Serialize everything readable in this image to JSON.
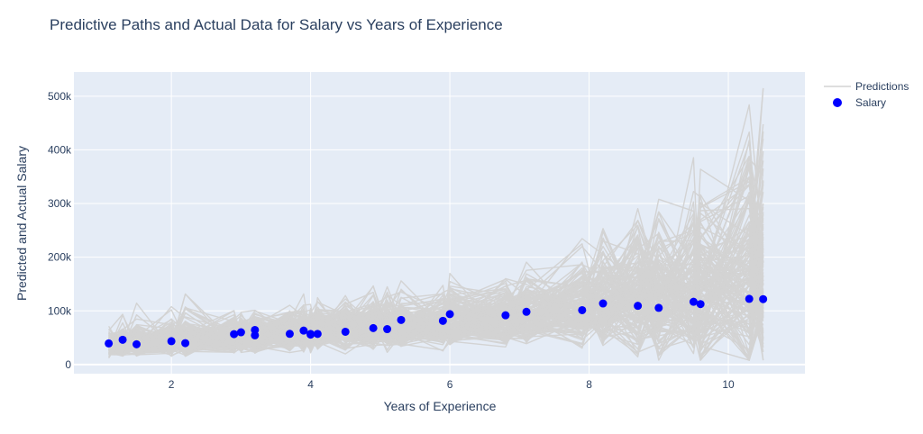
{
  "chart_data": {
    "type": "scatter",
    "title": "Predictive Paths and Actual Data for Salary vs Years of Experience",
    "xlabel": "Years of Experience",
    "ylabel": "Predicted and Actual Salary",
    "xlim": [
      0.6,
      11.1
    ],
    "ylim": [
      -17000,
      545000
    ],
    "x_ticks": [
      2,
      4,
      6,
      8,
      10
    ],
    "x_tick_labels": [
      "2",
      "4",
      "6",
      "8",
      "10"
    ],
    "y_ticks": [
      0,
      100000,
      200000,
      300000,
      400000,
      500000
    ],
    "y_tick_labels": [
      "0",
      "100k",
      "200k",
      "300k",
      "400k",
      "500k"
    ],
    "grid": true,
    "legend_position": "top-right",
    "colors": {
      "plot_bg": "#e5ecf6",
      "grid": "#ffffff",
      "predictions": "#d3d3d3",
      "salary": "#0000ff",
      "text": "#2a3f5f"
    },
    "series": [
      {
        "name": "Predictions",
        "kind": "lines",
        "note_paths": 160,
        "x_grid": [
          1.1,
          1.3,
          1.5,
          2.0,
          2.2,
          2.9,
          3.0,
          3.2,
          3.7,
          3.9,
          4.0,
          4.1,
          4.5,
          4.9,
          5.1,
          5.3,
          5.9,
          6.0,
          6.8,
          7.1,
          7.9,
          8.2,
          8.7,
          9.0,
          9.5,
          9.6,
          10.3,
          10.5
        ]
      },
      {
        "name": "Salary",
        "kind": "markers",
        "x": [
          1.1,
          1.3,
          1.5,
          2.0,
          2.2,
          2.9,
          3.0,
          3.2,
          3.2,
          3.7,
          3.9,
          4.0,
          4.0,
          4.1,
          4.5,
          4.9,
          5.1,
          5.3,
          5.9,
          6.0,
          6.8,
          7.1,
          7.9,
          8.2,
          8.7,
          9.0,
          9.5,
          9.6,
          10.3,
          10.5
        ],
        "y": [
          39343,
          46205,
          37731,
          43525,
          39891,
          56642,
          60150,
          54445,
          64445,
          57189,
          63218,
          55794,
          56957,
          57081,
          61111,
          67938,
          66029,
          83088,
          81363,
          93940,
          91738,
          98273,
          101302,
          113812,
          109431,
          105582,
          116969,
          112635,
          122391,
          121872
        ]
      }
    ]
  }
}
